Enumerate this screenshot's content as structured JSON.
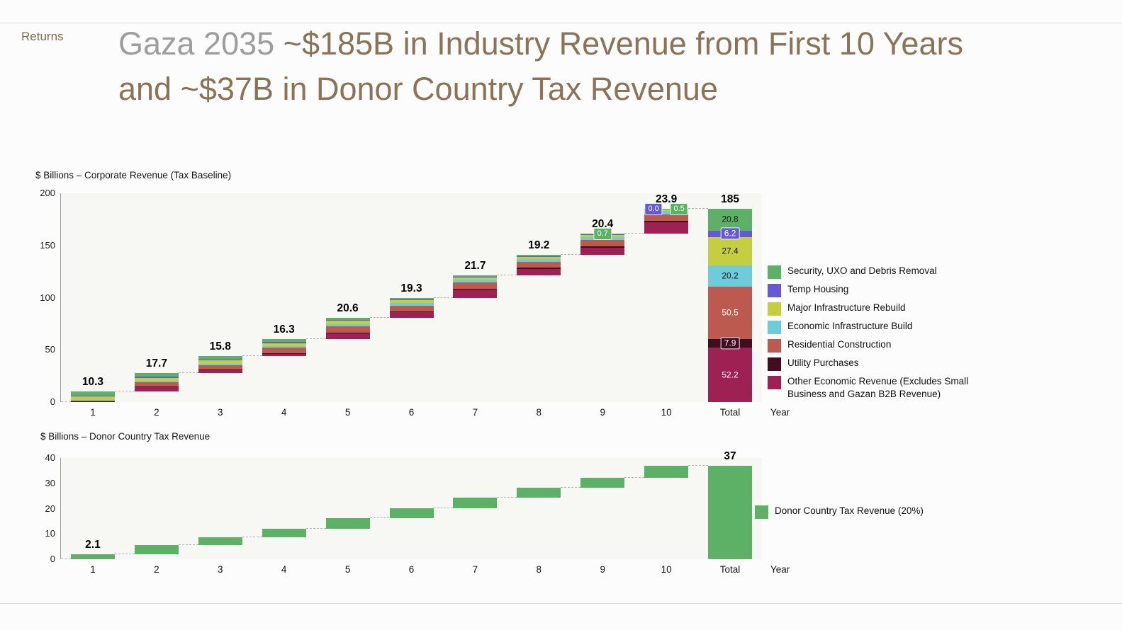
{
  "header": {
    "returns_label": "Returns",
    "title_gray": "Gaza 2035 ",
    "title_brown": "~$185B in Industry Revenue from First 10 Years and ~$37B in Donor Country Tax Revenue",
    "title_gray_color": "#9d9d9d",
    "title_brown_color": "#8a7357"
  },
  "chart_data": [
    {
      "type": "bar",
      "subtype": "stacked-waterfall",
      "title": "$ Billions – Corporate Revenue (Tax Baseline)",
      "xlabel": "Year",
      "ylim": [
        0,
        200
      ],
      "y_ticks": [
        0,
        50,
        100,
        150,
        200
      ],
      "grid": false,
      "legend_position": "right",
      "categories": [
        "1",
        "2",
        "3",
        "4",
        "5",
        "6",
        "7",
        "8",
        "9",
        "10",
        "Total"
      ],
      "bar_totals": [
        10.3,
        17.7,
        15.8,
        16.3,
        20.6,
        19.3,
        21.7,
        19.2,
        20.4,
        23.9
      ],
      "bar_labels": [
        "10.3",
        "17.7",
        "15.8",
        "16.3",
        "20.6",
        "19.3",
        "21.7",
        "19.2",
        "20.4",
        "23.9"
      ],
      "grand_total": 185,
      "total_label": "185",
      "show_segment_labels": true,
      "series": [
        {
          "name": "Security, UXO and Debris Removal",
          "color": "#5cb167",
          "label_dark": true,
          "total": 20.8,
          "values": [
            4.0,
            3.5,
            3.0,
            2.6,
            2.2,
            1.8,
            1.4,
            1.1,
            0.7,
            0.5
          ]
        },
        {
          "name": "Temp Housing",
          "color": "#6659d4",
          "label_dark": false,
          "total": 6.2,
          "values": [
            0.5,
            1.2,
            1.0,
            0.9,
            0.8,
            0.7,
            0.5,
            0.4,
            0.2,
            0.0
          ]
        },
        {
          "name": "Major Infrastructure Rebuild",
          "color": "#c5ce3e",
          "label_dark": true,
          "total": 27.4,
          "values": [
            3.5,
            3.2,
            3.0,
            2.9,
            3.0,
            2.8,
            2.7,
            2.3,
            2.1,
            1.9
          ]
        },
        {
          "name": "Economic Infrastructure Build",
          "color": "#6ecbd9",
          "label_dark": true,
          "total": 20.2,
          "values": [
            0.5,
            1.3,
            1.5,
            1.8,
            2.2,
            2.3,
            2.5,
            2.6,
            2.7,
            2.8
          ]
        },
        {
          "name": "Residential Construction",
          "color": "#bd5a50",
          "label_dark": false,
          "total": 50.5,
          "values": [
            1.0,
            4.0,
            4.3,
            4.8,
            5.8,
            5.6,
            6.2,
            6.0,
            6.4,
            6.4
          ]
        },
        {
          "name": "Utility Purchases",
          "color": "#400e20",
          "label_dark": false,
          "total": 7.9,
          "values": [
            0.3,
            0.5,
            0.5,
            0.6,
            0.7,
            0.8,
            0.9,
            1.0,
            1.2,
            1.4
          ]
        },
        {
          "name": "Other Economic Revenue (Excludes Small Business and Gazan B2B Revenue)",
          "color": "#9e2153",
          "label_dark": false,
          "total": 52.2,
          "values": [
            0.5,
            4.0,
            2.5,
            2.7,
            5.9,
            5.3,
            7.5,
            5.8,
            7.1,
            10.9
          ]
        }
      ],
      "pills": [
        {
          "bar": 8,
          "series": 0,
          "text": "0.7",
          "dx": 0
        },
        {
          "bar": 9,
          "series": 1,
          "text": "0.0",
          "dx": -18
        },
        {
          "bar": 9,
          "series": 0,
          "text": "0.5",
          "dx": 18
        }
      ]
    },
    {
      "type": "bar",
      "subtype": "waterfall",
      "title": "$ Billions – Donor Country Tax Revenue",
      "xlabel": "Year",
      "ylim": [
        0,
        40
      ],
      "y_ticks": [
        0,
        10,
        20,
        30,
        40
      ],
      "grid": false,
      "legend_position": "right",
      "categories": [
        "1",
        "2",
        "3",
        "4",
        "5",
        "6",
        "7",
        "8",
        "9",
        "10",
        "Total"
      ],
      "bar_totals": [
        2.1,
        3.5,
        3.2,
        3.3,
        4.1,
        3.9,
        4.3,
        3.8,
        4.1,
        4.7
      ],
      "bar_labels": [
        "2.1",
        "",
        "",
        "",
        "",
        "",
        "",
        "",
        "",
        ""
      ],
      "grand_total": 37,
      "total_label": "37",
      "show_segment_labels": false,
      "series": [
        {
          "name": "Donor Country Tax Revenue (20%)",
          "color": "#5cb167",
          "label_dark": true,
          "total": 37,
          "values": [
            2.1,
            3.5,
            3.2,
            3.3,
            4.1,
            3.9,
            4.3,
            3.8,
            4.1,
            4.7
          ]
        }
      ],
      "pills": []
    }
  ]
}
